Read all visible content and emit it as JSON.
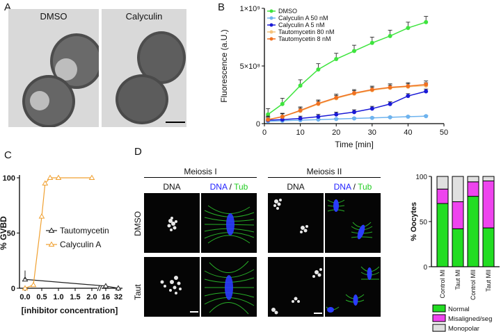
{
  "panels": {
    "a": {
      "label": "A",
      "images": [
        "DMSO",
        "Calyculin"
      ]
    },
    "b": {
      "label": "B"
    },
    "c": {
      "label": "C"
    },
    "d": {
      "label": "D",
      "meiosis1": "Meiosis I",
      "meiosis2": "Meiosis II",
      "dna": "DNA",
      "dna_colored": "DNA",
      "slash": " / ",
      "tub": "Tub",
      "row_dmso": "DMSO",
      "row_taut": "Taut"
    }
  },
  "chart_data": [
    {
      "type": "line",
      "panel": "B",
      "xlabel": "Time [min]",
      "ylabel": "Fluorescence (a.U.)",
      "xlim": [
        0,
        50
      ],
      "ylim": [
        0,
        1000000000
      ],
      "xticks": [
        "0",
        "10",
        "20",
        "30",
        "40",
        "50"
      ],
      "yticks": [
        "0",
        "5×10⁸",
        "1×10⁹"
      ],
      "legend_position": "top-left",
      "colors": {
        "DMSO": "#3ee43e",
        "Calyculin A 50 nM": "#6db3ef",
        "Calyculin A 5 nM": "#1a1ad6",
        "Tautomycetin 80 nM": "#f5c27a",
        "Tautomycetin 8 nM": "#f07020"
      },
      "series": [
        {
          "name": "DMSO",
          "x": [
            1,
            5,
            10,
            15,
            20,
            25,
            30,
            35,
            40,
            45
          ],
          "y": [
            80000000,
            170000000,
            330000000,
            470000000,
            560000000,
            630000000,
            700000000,
            760000000,
            830000000,
            880000000
          ],
          "err": 50000000
        },
        {
          "name": "Calyculin A 50 nM",
          "x": [
            1,
            5,
            10,
            15,
            20,
            25,
            30,
            35,
            40,
            45
          ],
          "y": [
            20000000,
            25000000,
            30000000,
            35000000,
            40000000,
            45000000,
            50000000,
            55000000,
            60000000,
            65000000
          ],
          "err": 5000000
        },
        {
          "name": "Calyculin A 5 nM",
          "x": [
            1,
            5,
            10,
            15,
            20,
            25,
            30,
            35,
            40,
            45
          ],
          "y": [
            30000000,
            35000000,
            45000000,
            60000000,
            80000000,
            100000000,
            130000000,
            170000000,
            240000000,
            280000000
          ],
          "err": 20000000
        },
        {
          "name": "Tautomycetin 80 nM",
          "x": [
            1,
            5,
            10,
            15,
            20,
            25,
            30,
            35,
            40,
            45
          ],
          "y": [
            35000000,
            60000000,
            110000000,
            170000000,
            220000000,
            260000000,
            290000000,
            310000000,
            320000000,
            330000000
          ],
          "err": 25000000
        },
        {
          "name": "Tautomycetin 8 nM",
          "x": [
            1,
            5,
            10,
            15,
            20,
            25,
            30,
            35,
            40,
            45
          ],
          "y": [
            35000000,
            60000000,
            115000000,
            175000000,
            225000000,
            265000000,
            295000000,
            315000000,
            325000000,
            340000000
          ],
          "err": 30000000
        }
      ]
    },
    {
      "type": "line",
      "panel": "C",
      "xlabel": "[inhibitor concentration]",
      "ylabel": "% GVBD",
      "ylim": [
        0,
        100
      ],
      "xticks": [
        "0.0",
        "0.5",
        "1.0",
        "1.5",
        "2.0",
        "16",
        "32"
      ],
      "yticks": [
        "0",
        "50",
        "100"
      ],
      "legend_position": "center",
      "colors": {
        "Tautomycetin": "#222222",
        "Calyculin A": "#f0a030"
      },
      "series": [
        {
          "name": "Tautomycetin",
          "x": [
            0.0,
            16,
            32
          ],
          "y": [
            8,
            2,
            0
          ]
        },
        {
          "name": "Calyculin A",
          "x": [
            0.0,
            0.25,
            0.5,
            0.6,
            0.75,
            1.0,
            2.0
          ],
          "y": [
            0,
            3,
            65,
            95,
            100,
            100,
            100
          ]
        }
      ]
    },
    {
      "type": "bar",
      "panel": "D",
      "stacked": true,
      "ylabel": "% Oocytes",
      "ylim": [
        0,
        100
      ],
      "yticks": [
        "0",
        "50",
        "100"
      ],
      "categories": [
        "Control MI",
        "Taut MI",
        "Control MII",
        "Taut MII"
      ],
      "colors": {
        "Normal": "#22dd22",
        "Misaligned/seg": "#ee44ee",
        "Monopolar": "#e0e0e0"
      },
      "series": [
        {
          "name": "Normal",
          "values": [
            70,
            42,
            78,
            43
          ]
        },
        {
          "name": "Misaligned/seg",
          "values": [
            16,
            30,
            16,
            52
          ]
        },
        {
          "name": "Monopolar",
          "values": [
            14,
            28,
            6,
            5
          ]
        }
      ]
    }
  ]
}
